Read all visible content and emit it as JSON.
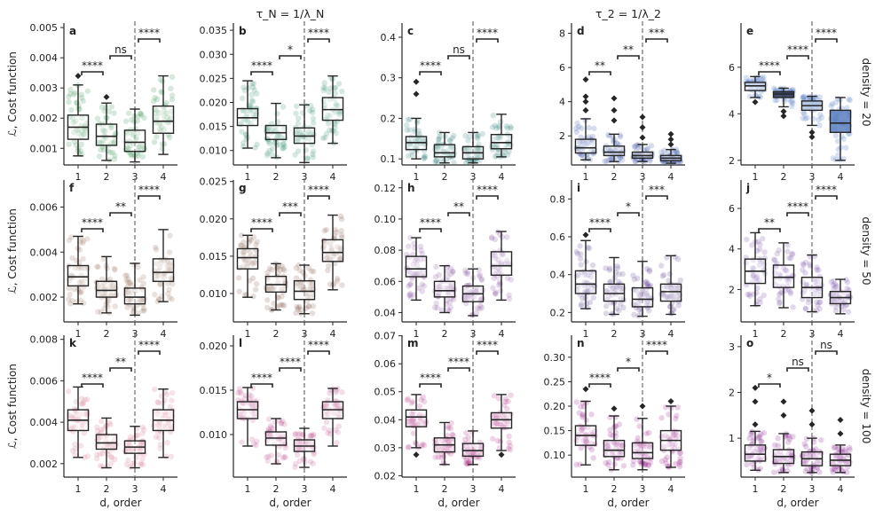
{
  "colors": {
    "box_edge": "#262626",
    "dashed_line": "#777777",
    "bracket": "#262626",
    "ranks": [
      "#2d8a4e",
      "#1f6e55",
      "#2e7a6f",
      "#3a4f9e",
      "#3f67a8"
    ],
    "rank_box_fills_col5": [
      "#ffffff",
      "#2f3b57",
      "#b9cbe6",
      "#5b7fbf"
    ],
    "panel_hues": {
      "row1": [
        "#4a9b5e",
        "#3e9576",
        "#3f8a84",
        "#4c66ae",
        "#4f76bf"
      ],
      "row2": [
        "#9a7a6b",
        "#8d6b5b",
        "#8f5ea6",
        "#6a4c98",
        "#7c57a8"
      ],
      "row3": [
        "#d88195",
        "#c2669a",
        "#b8408c",
        "#9e2e90",
        "#8d2f94"
      ]
    }
  },
  "column_titles": [
    "τ_N = 1/λ_N",
    "τ_2 = 1/λ_2"
  ],
  "row_labels": [
    "density = 20",
    "density = 50",
    "density = 100"
  ],
  "y_axis_label": "ℒ, Cost function",
  "x_axis_label": "d, order",
  "chart_data": [
    {
      "panel": "a",
      "type": "box",
      "categories": [
        "1",
        "2",
        "3",
        "4"
      ],
      "ylim": [
        0.00045,
        0.00515
      ],
      "yticks": [
        0.001,
        0.002,
        0.003,
        0.004,
        0.005
      ],
      "ytick_labels": [
        "0.001",
        "0.002",
        "0.003",
        "0.004",
        "0.005"
      ],
      "boxes": [
        [
          0.00075,
          0.0013,
          0.0017,
          0.0021,
          0.0031
        ],
        [
          0.0006,
          0.0011,
          0.0014,
          0.0018,
          0.0025
        ],
        [
          0.00055,
          0.0009,
          0.0012,
          0.0016,
          0.0023
        ],
        [
          0.0008,
          0.0015,
          0.0019,
          0.0024,
          0.0034
        ]
      ],
      "outliers": [
        [
          0.0034
        ],
        [
          0.0027
        ],
        [],
        []
      ],
      "significance": [
        {
          "from": 1,
          "to": 2,
          "label": "****"
        },
        {
          "from": 2,
          "to": 3,
          "label": "ns"
        },
        {
          "from": 3,
          "to": 4,
          "label": "****"
        }
      ]
    },
    {
      "panel": "b",
      "type": "box",
      "categories": [
        "1",
        "2",
        "3",
        "4"
      ],
      "ylim": [
        0.007,
        0.0365
      ],
      "yticks": [
        0.01,
        0.015,
        0.02,
        0.025,
        0.03,
        0.035
      ],
      "ytick_labels": [
        "0.010",
        "0.015",
        "0.020",
        "0.025",
        "0.030",
        "0.035"
      ],
      "boxes": [
        [
          0.0105,
          0.0152,
          0.0168,
          0.0187,
          0.0245
        ],
        [
          0.0085,
          0.0123,
          0.0137,
          0.0152,
          0.0198
        ],
        [
          0.0075,
          0.0115,
          0.013,
          0.0147,
          0.0195
        ],
        [
          0.0115,
          0.0163,
          0.0185,
          0.021,
          0.0255
        ]
      ],
      "outliers": [
        [],
        [],
        [],
        []
      ],
      "significance": [
        {
          "from": 1,
          "to": 2,
          "label": "****"
        },
        {
          "from": 2,
          "to": 3,
          "label": "*"
        },
        {
          "from": 3,
          "to": 4,
          "label": "****"
        }
      ]
    },
    {
      "panel": "c",
      "type": "box",
      "categories": [
        "1",
        "2",
        "3",
        "4"
      ],
      "ylim": [
        0.085,
        0.435
      ],
      "yticks": [
        0.1,
        0.2,
        0.3,
        0.4
      ],
      "ytick_labels": [
        "0.1",
        "0.2",
        "0.3",
        "0.4"
      ],
      "boxes": [
        [
          0.1,
          0.123,
          0.14,
          0.155,
          0.2
        ],
        [
          0.09,
          0.105,
          0.115,
          0.135,
          0.165
        ],
        [
          0.09,
          0.1,
          0.115,
          0.13,
          0.165
        ],
        [
          0.105,
          0.125,
          0.14,
          0.16,
          0.21
        ]
      ],
      "outliers": [
        [
          0.29,
          0.26
        ],
        [],
        [],
        []
      ],
      "significance": [
        {
          "from": 1,
          "to": 2,
          "label": "****"
        },
        {
          "from": 2,
          "to": 3,
          "label": "ns"
        },
        {
          "from": 3,
          "to": 4,
          "label": "****"
        }
      ]
    },
    {
      "panel": "d",
      "type": "box",
      "categories": [
        "1",
        "2",
        "3",
        "4"
      ],
      "ylim": [
        0.3,
        8.6
      ],
      "yticks": [
        2,
        4,
        6,
        8
      ],
      "ytick_labels": [
        "2",
        "4",
        "6",
        "8"
      ],
      "boxes": [
        [
          0.6,
          1.0,
          1.3,
          1.8,
          3.0
        ],
        [
          0.5,
          0.85,
          1.05,
          1.4,
          2.1
        ],
        [
          0.5,
          0.7,
          0.85,
          1.05,
          1.5
        ],
        [
          0.4,
          0.55,
          0.7,
          0.85,
          1.2
        ]
      ],
      "outliers": [
        [
          5.3,
          4.3,
          4.0,
          3.5
        ],
        [
          4.2,
          3.5,
          2.9
        ],
        [
          3.1,
          2.5,
          1.9
        ],
        [
          2.1,
          1.8,
          1.5
        ]
      ],
      "significance": [
        {
          "from": 1,
          "to": 2,
          "label": "**"
        },
        {
          "from": 2,
          "to": 3,
          "label": "**"
        },
        {
          "from": 3,
          "to": 4,
          "label": "***"
        }
      ]
    },
    {
      "panel": "e",
      "type": "box",
      "categories": [
        "1",
        "2",
        "3",
        "4"
      ],
      "ylim": [
        1.8,
        7.9
      ],
      "yticks": [
        2,
        4,
        6
      ],
      "ytick_labels": [
        "2",
        "4",
        "6"
      ],
      "boxes": [
        [
          4.7,
          5.0,
          5.2,
          5.35,
          5.6
        ],
        [
          4.3,
          4.7,
          4.85,
          4.95,
          5.1
        ],
        [
          3.5,
          4.15,
          4.35,
          4.55,
          4.75
        ],
        [
          2.0,
          3.2,
          3.6,
          4.15,
          4.7
        ]
      ],
      "outliers": [
        [
          4.5
        ],
        [
          3.9,
          4.1
        ],
        [
          3.0,
          3.2
        ],
        []
      ],
      "significance": [
        {
          "from": 1,
          "to": 2,
          "label": "****"
        },
        {
          "from": 2,
          "to": 3,
          "label": "****"
        },
        {
          "from": 3,
          "to": 4,
          "label": "****"
        }
      ]
    },
    {
      "panel": "f",
      "type": "box",
      "categories": [
        "1",
        "2",
        "3",
        "4"
      ],
      "ylim": [
        0.0009,
        0.0072
      ],
      "yticks": [
        0.002,
        0.004,
        0.006
      ],
      "ytick_labels": [
        "0.002",
        "0.004",
        "0.006"
      ],
      "boxes": [
        [
          0.0017,
          0.0025,
          0.0029,
          0.0034,
          0.0047
        ],
        [
          0.0013,
          0.002,
          0.0023,
          0.0027,
          0.0038
        ],
        [
          0.0012,
          0.0017,
          0.002,
          0.0024,
          0.0035
        ],
        [
          0.0018,
          0.0027,
          0.0031,
          0.0037,
          0.005
        ]
      ],
      "outliers": [
        [],
        [],
        [],
        []
      ],
      "significance": [
        {
          "from": 1,
          "to": 2,
          "label": "****"
        },
        {
          "from": 2,
          "to": 3,
          "label": "**"
        },
        {
          "from": 3,
          "to": 4,
          "label": "****"
        }
      ]
    },
    {
      "panel": "g",
      "type": "box",
      "categories": [
        "1",
        "2",
        "3",
        "4"
      ],
      "ylim": [
        0.0062,
        0.0252
      ],
      "yticks": [
        0.01,
        0.015,
        0.02,
        0.025
      ],
      "ytick_labels": [
        "0.010",
        "0.015",
        "0.020",
        "0.025"
      ],
      "boxes": [
        [
          0.0095,
          0.0133,
          0.0148,
          0.016,
          0.0178
        ],
        [
          0.0078,
          0.0102,
          0.0112,
          0.0123,
          0.014
        ],
        [
          0.0073,
          0.0092,
          0.0103,
          0.0117,
          0.0138
        ],
        [
          0.0105,
          0.0143,
          0.0155,
          0.0172,
          0.0205
        ]
      ],
      "outliers": [
        [],
        [],
        [],
        []
      ],
      "significance": [
        {
          "from": 1,
          "to": 2,
          "label": "****"
        },
        {
          "from": 2,
          "to": 3,
          "label": "***"
        },
        {
          "from": 3,
          "to": 4,
          "label": "****"
        }
      ]
    },
    {
      "panel": "h",
      "type": "box",
      "categories": [
        "1",
        "2",
        "3",
        "4"
      ],
      "ylim": [
        0.034,
        0.125
      ],
      "yticks": [
        0.04,
        0.06,
        0.08,
        0.1,
        0.12
      ],
      "ytick_labels": [
        "0.04",
        "0.06",
        "0.08",
        "0.10",
        "0.12"
      ],
      "boxes": [
        [
          0.048,
          0.063,
          0.068,
          0.076,
          0.088
        ],
        [
          0.04,
          0.05,
          0.054,
          0.06,
          0.07
        ],
        [
          0.038,
          0.047,
          0.052,
          0.057,
          0.068
        ],
        [
          0.048,
          0.064,
          0.07,
          0.079,
          0.092
        ]
      ],
      "outliers": [
        [],
        [],
        [],
        []
      ],
      "significance": [
        {
          "from": 1,
          "to": 2,
          "label": "****"
        },
        {
          "from": 2,
          "to": 3,
          "label": "**"
        },
        {
          "from": 3,
          "to": 4,
          "label": "****"
        }
      ]
    },
    {
      "panel": "i",
      "type": "box",
      "categories": [
        "1",
        "2",
        "3",
        "4"
      ],
      "ylim": [
        0.15,
        0.9
      ],
      "yticks": [
        0.2,
        0.4,
        0.6,
        0.8
      ],
      "ytick_labels": [
        "0.2",
        "0.4",
        "0.6",
        "0.8"
      ],
      "boxes": [
        [
          0.22,
          0.3,
          0.35,
          0.42,
          0.58
        ],
        [
          0.19,
          0.26,
          0.3,
          0.35,
          0.49
        ],
        [
          0.18,
          0.23,
          0.27,
          0.33,
          0.47
        ],
        [
          0.19,
          0.26,
          0.31,
          0.35,
          0.5
        ]
      ],
      "outliers": [
        [
          0.61
        ],
        [],
        [],
        []
      ],
      "significance": [
        {
          "from": 1,
          "to": 2,
          "label": "****"
        },
        {
          "from": 2,
          "to": 3,
          "label": "*"
        },
        {
          "from": 3,
          "to": 4,
          "label": "***"
        }
      ]
    },
    {
      "panel": "j",
      "type": "box",
      "categories": [
        "1",
        "2",
        "3",
        "4"
      ],
      "ylim": [
        0.4,
        7.4
      ],
      "yticks": [
        2,
        4,
        6
      ],
      "ytick_labels": [
        "2",
        "4",
        "6"
      ],
      "boxes": [
        [
          1.2,
          2.3,
          2.9,
          3.5,
          4.8
        ],
        [
          1.1,
          2.1,
          2.6,
          3.2,
          4.3
        ],
        [
          0.9,
          1.6,
          2.1,
          2.6,
          3.7
        ],
        [
          0.8,
          1.3,
          1.6,
          1.9,
          2.5
        ]
      ],
      "outliers": [
        [],
        [],
        [],
        []
      ],
      "significance": [
        {
          "from": 1,
          "to": 2,
          "label": "**"
        },
        {
          "from": 2,
          "to": 3,
          "label": "****"
        },
        {
          "from": 3,
          "to": 4,
          "label": "****"
        }
      ]
    },
    {
      "panel": "k",
      "type": "box",
      "categories": [
        "1",
        "2",
        "3",
        "4"
      ],
      "ylim": [
        0.00135,
        0.0082
      ],
      "yticks": [
        0.002,
        0.004,
        0.006,
        0.008
      ],
      "ytick_labels": [
        "0.002",
        "0.004",
        "0.006",
        "0.008"
      ],
      "boxes": [
        [
          0.0023,
          0.0036,
          0.0041,
          0.0046,
          0.0057
        ],
        [
          0.0018,
          0.0027,
          0.003,
          0.0034,
          0.0042
        ],
        [
          0.0018,
          0.0025,
          0.0028,
          0.0031,
          0.0038
        ],
        [
          0.0023,
          0.0036,
          0.0041,
          0.0046,
          0.0056
        ]
      ],
      "outliers": [
        [],
        [],
        [],
        []
      ],
      "significance": [
        {
          "from": 1,
          "to": 2,
          "label": "****"
        },
        {
          "from": 2,
          "to": 3,
          "label": "**"
        },
        {
          "from": 3,
          "to": 4,
          "label": "****"
        }
      ]
    },
    {
      "panel": "l",
      "type": "box",
      "categories": [
        "1",
        "2",
        "3",
        "4"
      ],
      "ylim": [
        0.0052,
        0.0212
      ],
      "yticks": [
        0.01,
        0.015,
        0.02
      ],
      "ytick_labels": [
        "0.010",
        "0.015",
        "0.020"
      ],
      "boxes": [
        [
          0.0087,
          0.0118,
          0.0128,
          0.0137,
          0.0153
        ],
        [
          0.0067,
          0.0088,
          0.0096,
          0.0103,
          0.0118
        ],
        [
          0.0063,
          0.0081,
          0.0087,
          0.0094,
          0.0107
        ],
        [
          0.0087,
          0.0118,
          0.0128,
          0.0137,
          0.0152
        ]
      ],
      "outliers": [
        [],
        [],
        [],
        []
      ],
      "significance": [
        {
          "from": 1,
          "to": 2,
          "label": "****"
        },
        {
          "from": 2,
          "to": 3,
          "label": "****"
        },
        {
          "from": 3,
          "to": 4,
          "label": "****"
        }
      ]
    },
    {
      "panel": "m",
      "type": "box",
      "categories": [
        "1",
        "2",
        "3",
        "4"
      ],
      "ylim": [
        0.0195,
        0.0702
      ],
      "yticks": [
        0.02,
        0.03,
        0.04,
        0.05,
        0.06,
        0.07
      ],
      "ytick_labels": [
        "0.02",
        "0.03",
        "0.04",
        "0.05",
        "0.06",
        "0.07"
      ],
      "boxes": [
        [
          0.03,
          0.0375,
          0.041,
          0.0435,
          0.049
        ],
        [
          0.024,
          0.0285,
          0.031,
          0.0335,
          0.039
        ],
        [
          0.024,
          0.027,
          0.029,
          0.0315,
          0.036
        ],
        [
          0.029,
          0.037,
          0.04,
          0.0425,
          0.049
        ]
      ],
      "outliers": [
        [
          0.0275
        ],
        [],
        [],
        [
          0.0275
        ]
      ],
      "significance": [
        {
          "from": 1,
          "to": 2,
          "label": "****"
        },
        {
          "from": 2,
          "to": 3,
          "label": "****"
        },
        {
          "from": 3,
          "to": 4,
          "label": "****"
        }
      ]
    },
    {
      "panel": "n",
      "type": "box",
      "categories": [
        "1",
        "2",
        "3",
        "4"
      ],
      "ylim": [
        0.055,
        0.345
      ],
      "yticks": [
        0.1,
        0.15,
        0.2,
        0.25,
        0.3
      ],
      "ytick_labels": [
        "0.10",
        "0.15",
        "0.20",
        "0.25",
        "0.30"
      ],
      "boxes": [
        [
          0.08,
          0.12,
          0.14,
          0.16,
          0.21
        ],
        [
          0.07,
          0.097,
          0.11,
          0.13,
          0.18
        ],
        [
          0.07,
          0.093,
          0.105,
          0.125,
          0.175
        ],
        [
          0.075,
          0.11,
          0.13,
          0.15,
          0.2
        ]
      ],
      "outliers": [
        [
          0.235
        ],
        [
          0.195
        ],
        [
          0.2
        ],
        [
          0.21
        ]
      ],
      "significance": [
        {
          "from": 1,
          "to": 2,
          "label": "****"
        },
        {
          "from": 2,
          "to": 3,
          "label": "*"
        },
        {
          "from": 3,
          "to": 4,
          "label": "****"
        }
      ]
    },
    {
      "panel": "o",
      "type": "box",
      "categories": [
        "1",
        "2",
        "3",
        "4"
      ],
      "ylim": [
        0.15,
        3.25
      ],
      "yticks": [
        1,
        2,
        3
      ],
      "ytick_labels": [
        "1",
        "2",
        "3"
      ],
      "boxes": [
        [
          0.3,
          0.5,
          0.65,
          0.85,
          1.15
        ],
        [
          0.25,
          0.45,
          0.6,
          0.75,
          1.1
        ],
        [
          0.25,
          0.4,
          0.55,
          0.7,
          1.0
        ],
        [
          0.25,
          0.4,
          0.52,
          0.65,
          0.85
        ]
      ],
      "outliers": [
        [
          2.1,
          1.8,
          1.3
        ],
        [
          1.8,
          1.5
        ],
        [
          1.6,
          1.3
        ],
        [
          1.4,
          1.1
        ]
      ],
      "significance": [
        {
          "from": 1,
          "to": 2,
          "label": "*"
        },
        {
          "from": 2,
          "to": 3,
          "label": "ns"
        },
        {
          "from": 3,
          "to": 4,
          "label": "ns"
        }
      ]
    }
  ]
}
